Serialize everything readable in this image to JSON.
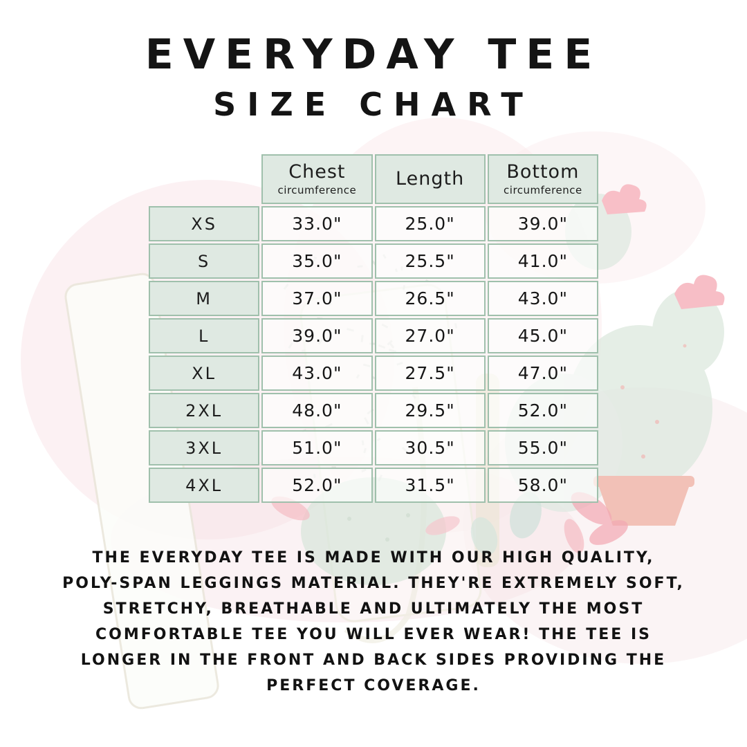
{
  "title": {
    "line1": "EVERYDAY TEE",
    "line2": "SIZE CHART"
  },
  "chart_data": {
    "type": "table",
    "title": "Everyday Tee Size Chart",
    "columns": [
      {
        "label": "Chest",
        "sub": "circumference"
      },
      {
        "label": "Length",
        "sub": ""
      },
      {
        "label": "Bottom",
        "sub": "circumference"
      }
    ],
    "rows": [
      {
        "size": "XS",
        "values": [
          "33.0\"",
          "25.0\"",
          "39.0\""
        ]
      },
      {
        "size": "S",
        "values": [
          "35.0\"",
          "25.5\"",
          "41.0\""
        ]
      },
      {
        "size": "M",
        "values": [
          "37.0\"",
          "26.5\"",
          "43.0\""
        ]
      },
      {
        "size": "L",
        "values": [
          "39.0\"",
          "27.0\"",
          "45.0\""
        ]
      },
      {
        "size": "XL",
        "values": [
          "43.0\"",
          "27.5\"",
          "47.0\""
        ]
      },
      {
        "size": "2XL",
        "values": [
          "48.0\"",
          "29.5\"",
          "52.0\""
        ]
      },
      {
        "size": "3XL",
        "values": [
          "51.0\"",
          "30.5\"",
          "55.0\""
        ]
      },
      {
        "size": "4XL",
        "values": [
          "52.0\"",
          "31.5\"",
          "58.0\""
        ]
      }
    ],
    "units": "inches",
    "layout": {
      "grid": true,
      "header_fill": "#dfe9e2",
      "border_color": "#9fc0ac"
    }
  },
  "description": {
    "lines": [
      "THE EVERYDAY TEE IS MADE WITH OUR HIGH QUALITY,",
      "POLY-SPAN LEGGINGS MATERIAL. THEY'RE EXTREMELY SOFT,",
      "STRETCHY, BREATHABLE AND ULTIMATELY THE MOST",
      "COMFORTABLE TEE YOU WILL EVER WEAR! THE TEE IS",
      "LONGER IN THE FRONT AND BACK SIDES PROVIDING THE",
      "PERFECT COVERAGE."
    ]
  },
  "colors": {
    "text": "#141414",
    "table_border": "#9fc0ac",
    "table_header_fill": "#dfe9e2",
    "watermark_green": "#d9e6dc",
    "watermark_pink": "#f6c2c9",
    "watermark_pot": "#efb0a2"
  }
}
